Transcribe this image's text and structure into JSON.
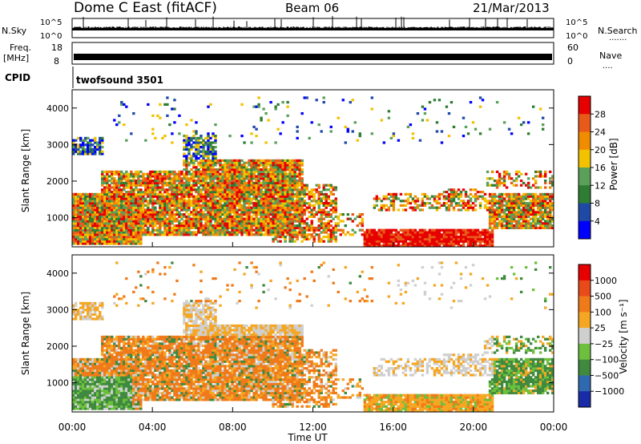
{
  "header": {
    "title": "Dome C East (fitACF)",
    "beam": "Beam 06",
    "date": "21/Mar/2013"
  },
  "top_panels": {
    "nsky_label": "N.Sky",
    "nsky_ticks": [
      "10^5",
      "10^0"
    ],
    "nsearch_label": "N.Search",
    "nsearch_ticks": [
      "10^5",
      "10^0"
    ],
    "freq_label": "Freq.",
    "freq_unit": "[MHz]",
    "freq_ticks": [
      "18",
      "8"
    ],
    "nave_label": "Nave",
    "nave_ticks": [
      "60",
      "0"
    ],
    "cpid_label": "CPID",
    "cpid_value": "twofsound 3501"
  },
  "chart_data": [
    {
      "type": "heatmap",
      "name": "power-panel",
      "ylabel": "Slant Range [km]",
      "yticks": [
        1000,
        2000,
        3000,
        4000
      ],
      "ylim": [
        200,
        4500
      ],
      "xlim": [
        0,
        24
      ],
      "colorbar": {
        "label": "Power [dB]",
        "ticks": [
          "4",
          "8",
          "12",
          "16",
          "20",
          "24",
          "28"
        ],
        "colors": [
          "#0000ff",
          "#1e4aa6",
          "#2e7d32",
          "#5aa05a",
          "#f2c200",
          "#f08c00",
          "#e85a1a",
          "#e60000"
        ]
      }
    },
    {
      "type": "heatmap",
      "name": "velocity-panel",
      "ylabel": "Slant Range [km]",
      "yticks": [
        1000,
        2000,
        3000,
        4000
      ],
      "ylim": [
        200,
        4500
      ],
      "xlim": [
        0,
        24
      ],
      "xticks": [
        "00:00",
        "04:00",
        "08:00",
        "12:00",
        "16:00",
        "20:00",
        "00:00"
      ],
      "xlabel": "Time UT",
      "colorbar": {
        "label": "Velocity [m s⁻¹]",
        "ticks": [
          "1000",
          "500",
          "100",
          "25",
          "−25",
          "−100",
          "−500",
          "−1000"
        ],
        "colors": [
          "#1a2ba8",
          "#2f6ab0",
          "#3f8a3f",
          "#6dc03e",
          "#cfcfcf",
          "#f5a623",
          "#f07a1a",
          "#e84a1a",
          "#e60000"
        ]
      }
    }
  ]
}
